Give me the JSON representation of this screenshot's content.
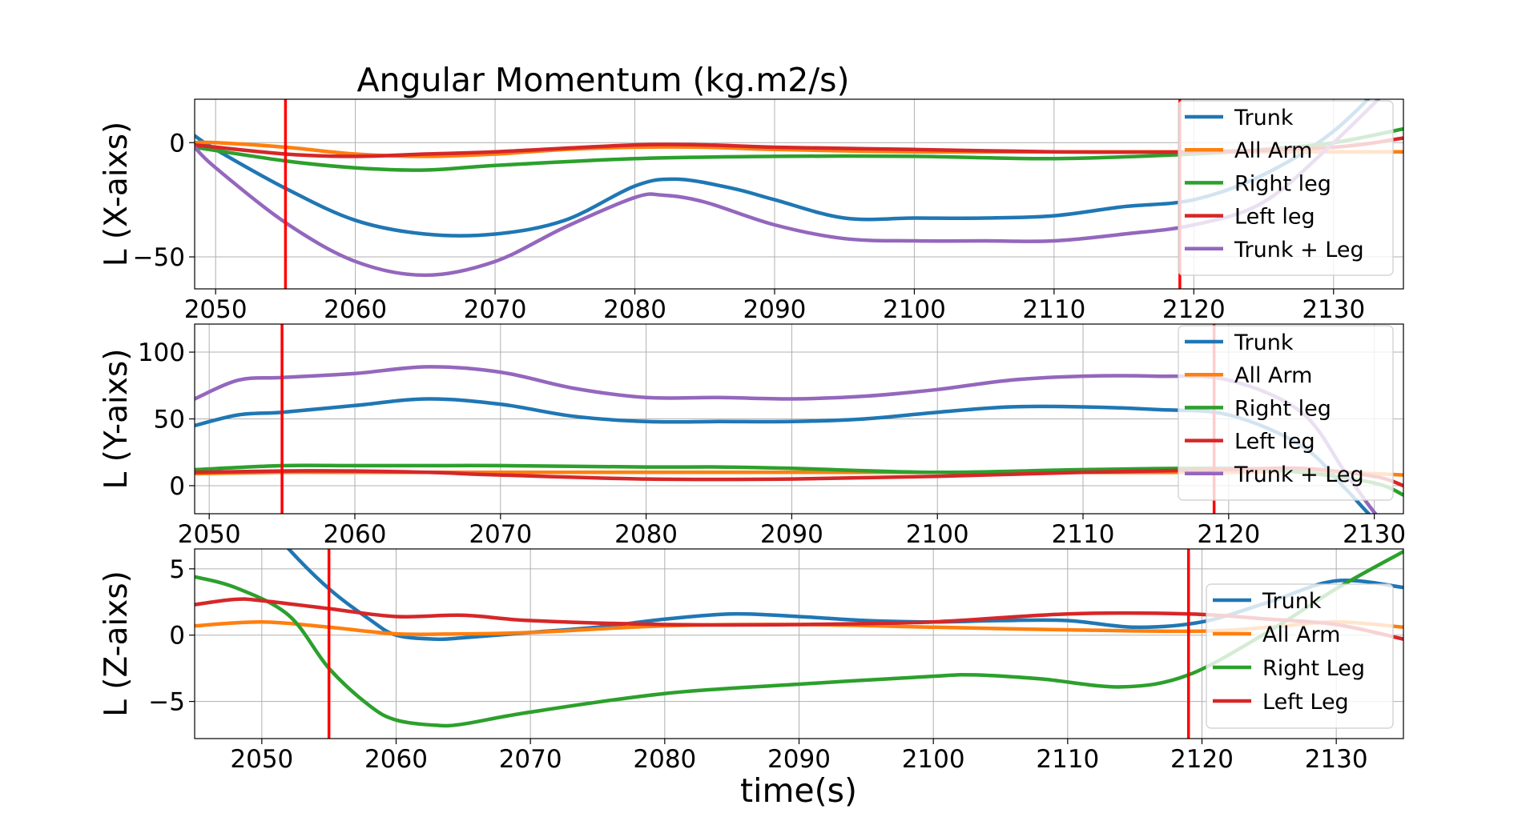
{
  "figure": {
    "title": "Angular Momentum (kg.m2/s)",
    "xlabel": "time(s)"
  },
  "colors": {
    "Trunk": "#1f77b4",
    "All Arm": "#ff7f0e",
    "Right leg": "#2ca02c",
    "Left leg": "#d62728",
    "Trunk + Leg": "#9467bd",
    "Right Leg": "#2ca02c",
    "Left Leg": "#d62728",
    "marker": "#ff0000",
    "grid": "#b0b0b0"
  },
  "chart_data": [
    {
      "type": "line",
      "ylabel": "L (X-aixs)",
      "xlim": [
        2048.5,
        2135
      ],
      "ylim": [
        -64,
        19
      ],
      "xticks": [
        2050,
        2060,
        2070,
        2080,
        2090,
        2100,
        2110,
        2120,
        2130
      ],
      "yticks": [
        0,
        -50
      ],
      "ytick_labels": [
        "0",
        "−50"
      ],
      "vlines": [
        2055,
        2119
      ],
      "grid": true,
      "legend_position": "upper-right",
      "series": [
        {
          "name": "Trunk",
          "x": [
            2048.5,
            2050,
            2055,
            2060,
            2065,
            2070,
            2075,
            2080,
            2083,
            2087,
            2090,
            2095,
            2100,
            2105,
            2110,
            2115,
            2120,
            2125,
            2130,
            2135
          ],
          "y": [
            3,
            -3,
            -20,
            -34,
            -40,
            -40,
            -34,
            -19,
            -16,
            -20,
            -25,
            -33,
            -33,
            -33,
            -32,
            -28,
            -25,
            -14,
            5,
            35
          ]
        },
        {
          "name": "All Arm",
          "x": [
            2048.5,
            2050,
            2055,
            2060,
            2065,
            2070,
            2075,
            2080,
            2085,
            2090,
            2100,
            2110,
            2120,
            2130,
            2135
          ],
          "y": [
            0,
            0,
            -2,
            -5,
            -6,
            -5,
            -3,
            -2,
            -2,
            -3,
            -4,
            -4,
            -4,
            -4,
            -4
          ]
        },
        {
          "name": "Right leg",
          "x": [
            2048.5,
            2055,
            2060,
            2065,
            2070,
            2080,
            2090,
            2100,
            2110,
            2120,
            2125,
            2130,
            2135
          ],
          "y": [
            -2,
            -8,
            -11,
            -12,
            -10,
            -7,
            -6,
            -6,
            -7,
            -5,
            -3,
            0,
            6
          ]
        },
        {
          "name": "Left leg",
          "x": [
            2048.5,
            2055,
            2060,
            2065,
            2070,
            2080,
            2085,
            2090,
            2100,
            2110,
            2120,
            2130,
            2135
          ],
          "y": [
            -1,
            -5,
            -6,
            -5,
            -4,
            -1,
            -1,
            -2,
            -3,
            -4,
            -4,
            -2,
            2
          ]
        },
        {
          "name": "Trunk + Leg",
          "x": [
            2048.5,
            2050,
            2055,
            2060,
            2065,
            2070,
            2075,
            2080,
            2082,
            2085,
            2090,
            2095,
            2100,
            2105,
            2110,
            2115,
            2120,
            2125,
            2130,
            2135
          ],
          "y": [
            -2,
            -11,
            -35,
            -52,
            -58,
            -52,
            -37,
            -24,
            -23,
            -26,
            -36,
            -42,
            -43,
            -43,
            -43,
            -40,
            -36,
            -26,
            0,
            30
          ]
        }
      ]
    },
    {
      "type": "line",
      "ylabel": "L (Y-aixs)",
      "xlim": [
        2049,
        2132
      ],
      "ylim": [
        -21,
        121
      ],
      "xticks": [
        2050,
        2060,
        2070,
        2080,
        2090,
        2100,
        2110,
        2120,
        2130
      ],
      "yticks": [
        100,
        50,
        0
      ],
      "ytick_labels": [
        "100",
        "50",
        "0"
      ],
      "vlines": [
        2055,
        2119
      ],
      "grid": true,
      "legend_position": "upper-right",
      "series": [
        {
          "name": "Trunk",
          "x": [
            2049,
            2052,
            2055,
            2060,
            2065,
            2070,
            2075,
            2080,
            2085,
            2090,
            2095,
            2100,
            2105,
            2110,
            2115,
            2120,
            2125,
            2128,
            2130,
            2132
          ],
          "y": [
            45,
            53,
            55,
            60,
            65,
            61,
            52,
            48,
            48,
            48,
            50,
            55,
            59,
            59,
            57,
            53,
            30,
            -2,
            -25,
            -40
          ]
        },
        {
          "name": "All Arm",
          "x": [
            2049,
            2055,
            2060,
            2070,
            2080,
            2090,
            2100,
            2110,
            2120,
            2125,
            2130,
            2132
          ],
          "y": [
            9,
            10,
            10,
            10,
            10,
            10,
            10,
            10,
            10,
            11,
            9,
            8
          ]
        },
        {
          "name": "Right leg",
          "x": [
            2049,
            2055,
            2060,
            2065,
            2070,
            2080,
            2085,
            2090,
            2100,
            2110,
            2120,
            2125,
            2130,
            2132
          ],
          "y": [
            12,
            15,
            15,
            15,
            15,
            14,
            14,
            13,
            10,
            12,
            13,
            10,
            2,
            -7
          ]
        },
        {
          "name": "Left leg",
          "x": [
            2049,
            2055,
            2060,
            2065,
            2070,
            2080,
            2090,
            2100,
            2110,
            2120,
            2125,
            2130,
            2132
          ],
          "y": [
            10,
            11,
            11,
            10,
            8,
            5,
            5,
            7,
            10,
            12,
            13,
            7,
            0
          ]
        },
        {
          "name": "Trunk + Leg",
          "x": [
            2049,
            2052,
            2055,
            2060,
            2065,
            2070,
            2075,
            2080,
            2085,
            2090,
            2095,
            2100,
            2105,
            2110,
            2115,
            2120,
            2125,
            2128,
            2130,
            2132
          ],
          "y": [
            65,
            79,
            81,
            84,
            89,
            85,
            73,
            66,
            66,
            65,
            67,
            72,
            79,
            82,
            82,
            79,
            55,
            10,
            -20,
            -45
          ]
        }
      ]
    },
    {
      "type": "line",
      "ylabel": "L (Z-aixs)",
      "xlim": [
        2045,
        2135
      ],
      "ylim": [
        -7.8,
        6.5
      ],
      "xticks": [
        2050,
        2060,
        2070,
        2080,
        2090,
        2100,
        2110,
        2120,
        2130
      ],
      "yticks": [
        5,
        0,
        -5
      ],
      "ytick_labels": [
        "5",
        "0",
        "−5"
      ],
      "vlines": [
        2055,
        2119
      ],
      "grid": true,
      "legend_position": "right",
      "series": [
        {
          "name": "Trunk",
          "x": [
            2045,
            2050,
            2052,
            2055,
            2058,
            2060,
            2063,
            2065,
            2070,
            2075,
            2080,
            2085,
            2090,
            2095,
            2100,
            2105,
            2110,
            2115,
            2120,
            2125,
            2130,
            2135
          ],
          "y": [
            14,
            9,
            6.5,
            3.5,
            1.2,
            0,
            -0.3,
            -0.2,
            0.2,
            0.6,
            1.2,
            1.6,
            1.4,
            1.1,
            1.0,
            1.1,
            1.1,
            0.6,
            1.0,
            2.5,
            4.1,
            3.6
          ]
        },
        {
          "name": "All Arm",
          "x": [
            2045,
            2050,
            2055,
            2060,
            2065,
            2070,
            2080,
            2090,
            2100,
            2110,
            2120,
            2125,
            2130,
            2135
          ],
          "y": [
            0.7,
            1.0,
            0.6,
            0.1,
            0.1,
            0.2,
            0.7,
            0.8,
            0.6,
            0.4,
            0.3,
            0.6,
            1.0,
            0.6
          ]
        },
        {
          "name": "Right Leg",
          "x": [
            2045,
            2048,
            2052,
            2055,
            2058,
            2060,
            2063,
            2065,
            2070,
            2080,
            2090,
            2100,
            2103,
            2108,
            2114,
            2119,
            2125,
            2130,
            2135
          ],
          "y": [
            4.4,
            3.6,
            1.5,
            -2.5,
            -5.3,
            -6.4,
            -6.8,
            -6.7,
            -5.8,
            -4.4,
            -3.7,
            -3.1,
            -3.0,
            -3.3,
            -3.9,
            -3.0,
            0.3,
            3.5,
            6.3
          ]
        },
        {
          "name": "Left Leg",
          "x": [
            2045,
            2048,
            2050,
            2055,
            2060,
            2065,
            2070,
            2080,
            2090,
            2100,
            2110,
            2119,
            2125,
            2130,
            2135
          ],
          "y": [
            2.3,
            2.7,
            2.6,
            2.0,
            1.4,
            1.5,
            1.1,
            0.8,
            0.8,
            1.0,
            1.6,
            1.6,
            1.2,
            0.8,
            -0.3
          ]
        }
      ]
    }
  ]
}
